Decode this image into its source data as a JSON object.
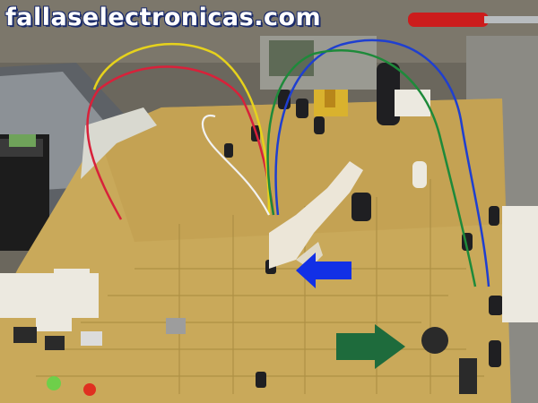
{
  "watermark": {
    "text": "fallaselectronicas.com",
    "color": "#ffffff",
    "outline_color": "#1a2a6a"
  },
  "scene": {
    "board_color": "#c9a95a",
    "wires": [
      {
        "name": "red-wire",
        "color": "#d8213a"
      },
      {
        "name": "yellow-wire",
        "color": "#e6d21c"
      },
      {
        "name": "blue-wire",
        "color": "#1f3fd0"
      },
      {
        "name": "green-wire",
        "color": "#1e8a3a"
      },
      {
        "name": "white-wire",
        "color": "#f2f2f2"
      }
    ],
    "markers": [
      {
        "name": "blue-arrow",
        "color": "#1230e6",
        "direction": "left"
      },
      {
        "name": "green-arrow",
        "color": "#1e6b3c",
        "direction": "right"
      }
    ],
    "tool": {
      "name": "screwdriver",
      "handle_color": "#d01818"
    }
  }
}
